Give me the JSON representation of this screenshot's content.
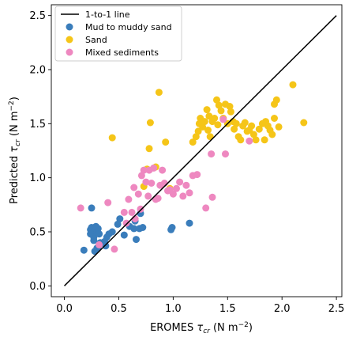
{
  "chart_data": {
    "type": "scatter",
    "xlabel": {
      "main": "EROMES ",
      "sym": "τ",
      "sub": "cr",
      "unit_pre": " (N m",
      "sup": "−2",
      "unit_post": ")"
    },
    "ylabel": {
      "main": "Predicted ",
      "sym": "τ",
      "sub": "cr",
      "unit_pre": " (N m",
      "sup": "−2",
      "unit_post": ")"
    },
    "xlim": [
      -0.12,
      2.55
    ],
    "ylim": [
      -0.1,
      2.6
    ],
    "xticks": [
      0.0,
      0.5,
      1.0,
      1.5,
      2.0,
      2.5
    ],
    "yticks": [
      0.0,
      0.5,
      1.0,
      1.5,
      2.0,
      2.5
    ],
    "xtick_labels": [
      "0.0",
      "0.5",
      "1.0",
      "1.5",
      "2.0",
      "2.5"
    ],
    "ytick_labels": [
      "0.0",
      "0.5",
      "1.0",
      "1.5",
      "2.0",
      "2.5"
    ],
    "grid": false,
    "legend_position": "top-left",
    "line": {
      "name": "1-to-1 line",
      "x": [
        0.0,
        2.5
      ],
      "y": [
        0.0,
        2.5
      ],
      "color": "#000000"
    },
    "series": [
      {
        "name": "Mud to muddy sand",
        "color": "#3a7dbb",
        "points": [
          [
            0.18,
            0.33
          ],
          [
            0.25,
            0.72
          ],
          [
            0.24,
            0.52
          ],
          [
            0.24,
            0.48
          ],
          [
            0.25,
            0.54
          ],
          [
            0.26,
            0.49
          ],
          [
            0.27,
            0.45
          ],
          [
            0.28,
            0.52
          ],
          [
            0.29,
            0.55
          ],
          [
            0.3,
            0.5
          ],
          [
            0.31,
            0.53
          ],
          [
            0.32,
            0.48
          ],
          [
            0.27,
            0.42
          ],
          [
            0.28,
            0.32
          ],
          [
            0.3,
            0.35
          ],
          [
            0.31,
            0.36
          ],
          [
            0.33,
            0.4
          ],
          [
            0.37,
            0.41
          ],
          [
            0.38,
            0.37
          ],
          [
            0.39,
            0.45
          ],
          [
            0.41,
            0.48
          ],
          [
            0.44,
            0.5
          ],
          [
            0.49,
            0.57
          ],
          [
            0.51,
            0.62
          ],
          [
            0.55,
            0.47
          ],
          [
            0.6,
            0.55
          ],
          [
            0.64,
            0.53
          ],
          [
            0.65,
            0.6
          ],
          [
            0.66,
            0.43
          ],
          [
            0.69,
            0.53
          ],
          [
            0.7,
            0.67
          ],
          [
            0.72,
            0.54
          ],
          [
            0.98,
            0.52
          ],
          [
            0.99,
            0.54
          ],
          [
            1.15,
            0.58
          ]
        ]
      },
      {
        "name": "Sand",
        "color": "#f5c518",
        "points": [
          [
            0.44,
            1.37
          ],
          [
            0.73,
            0.92
          ],
          [
            0.76,
            1.08
          ],
          [
            0.78,
            1.27
          ],
          [
            0.79,
            1.51
          ],
          [
            0.84,
            1.1
          ],
          [
            0.87,
            1.79
          ],
          [
            0.93,
            1.33
          ],
          [
            0.97,
            0.9
          ],
          [
            1.18,
            1.33
          ],
          [
            1.21,
            1.38
          ],
          [
            1.23,
            1.43
          ],
          [
            1.24,
            1.5
          ],
          [
            1.25,
            1.55
          ],
          [
            1.27,
            1.47
          ],
          [
            1.29,
            1.52
          ],
          [
            1.31,
            1.63
          ],
          [
            1.32,
            1.44
          ],
          [
            1.33,
            1.57
          ],
          [
            1.34,
            1.38
          ],
          [
            1.36,
            1.52
          ],
          [
            1.38,
            1.55
          ],
          [
            1.4,
            1.72
          ],
          [
            1.41,
            1.49
          ],
          [
            1.42,
            1.67
          ],
          [
            1.44,
            1.62
          ],
          [
            1.46,
            1.55
          ],
          [
            1.48,
            1.68
          ],
          [
            1.5,
            1.5
          ],
          [
            1.52,
            1.66
          ],
          [
            1.53,
            1.61
          ],
          [
            1.55,
            1.52
          ],
          [
            1.56,
            1.45
          ],
          [
            1.58,
            1.5
          ],
          [
            1.6,
            1.38
          ],
          [
            1.62,
            1.35
          ],
          [
            1.64,
            1.48
          ],
          [
            1.66,
            1.51
          ],
          [
            1.68,
            1.43
          ],
          [
            1.7,
            1.44
          ],
          [
            1.72,
            1.48
          ],
          [
            1.74,
            1.4
          ],
          [
            1.76,
            1.35
          ],
          [
            1.79,
            1.45
          ],
          [
            1.82,
            1.5
          ],
          [
            1.85,
            1.52
          ],
          [
            1.87,
            1.48
          ],
          [
            1.89,
            1.44
          ],
          [
            1.91,
            1.4
          ],
          [
            1.93,
            1.68
          ],
          [
            1.95,
            1.72
          ],
          [
            1.97,
            1.47
          ],
          [
            2.1,
            1.86
          ],
          [
            2.2,
            1.51
          ],
          [
            1.93,
            1.55
          ],
          [
            1.84,
            1.35
          ]
        ]
      },
      {
        "name": "Mixed sediments",
        "color": "#ee88c0",
        "points": [
          [
            0.15,
            0.72
          ],
          [
            0.32,
            0.38
          ],
          [
            0.4,
            0.77
          ],
          [
            0.46,
            0.34
          ],
          [
            0.55,
            0.68
          ],
          [
            0.57,
            0.58
          ],
          [
            0.59,
            0.8
          ],
          [
            0.62,
            0.68
          ],
          [
            0.64,
            0.91
          ],
          [
            0.65,
            0.62
          ],
          [
            0.68,
            0.85
          ],
          [
            0.7,
            0.71
          ],
          [
            0.71,
            1.02
          ],
          [
            0.73,
            1.07
          ],
          [
            0.75,
            0.96
          ],
          [
            0.77,
            0.83
          ],
          [
            0.78,
            1.07
          ],
          [
            0.8,
            0.95
          ],
          [
            0.82,
            1.09
          ],
          [
            0.84,
            0.8
          ],
          [
            0.86,
            0.81
          ],
          [
            0.88,
            0.93
          ],
          [
            0.9,
            1.07
          ],
          [
            0.92,
            0.95
          ],
          [
            0.95,
            0.88
          ],
          [
            0.97,
            0.89
          ],
          [
            1.0,
            0.85
          ],
          [
            1.03,
            0.9
          ],
          [
            1.06,
            0.96
          ],
          [
            1.09,
            0.83
          ],
          [
            1.12,
            0.93
          ],
          [
            1.15,
            0.86
          ],
          [
            1.18,
            1.02
          ],
          [
            1.22,
            1.03
          ],
          [
            1.3,
            0.72
          ],
          [
            1.35,
            1.22
          ],
          [
            1.36,
            0.82
          ],
          [
            1.46,
            1.54
          ],
          [
            1.48,
            1.22
          ],
          [
            1.7,
            1.34
          ]
        ]
      }
    ]
  }
}
